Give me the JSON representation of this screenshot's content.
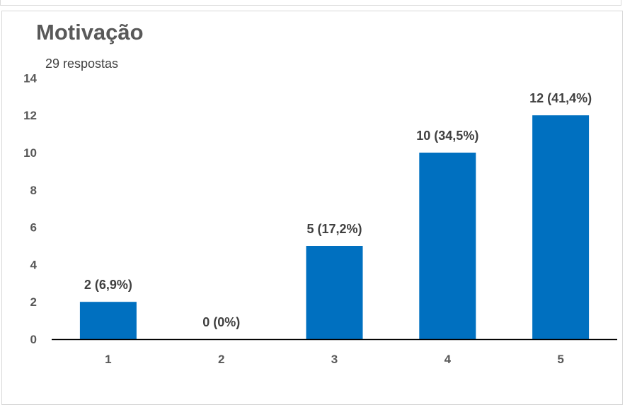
{
  "chart_data": {
    "type": "bar",
    "title": "Motivação",
    "subtitle": "29 respostas",
    "categories": [
      "1",
      "2",
      "3",
      "4",
      "5"
    ],
    "values": [
      2,
      0,
      5,
      10,
      12
    ],
    "data_labels": [
      "2 (6,9%)",
      "0 (0%)",
      "5 (17,2%)",
      "10 (34,5%)",
      "12 (41,4%)"
    ],
    "ylim": [
      0,
      14
    ],
    "yticks": [
      0,
      2,
      4,
      6,
      8,
      10,
      12,
      14
    ],
    "grid": false,
    "bar_color": "#0070c0"
  }
}
